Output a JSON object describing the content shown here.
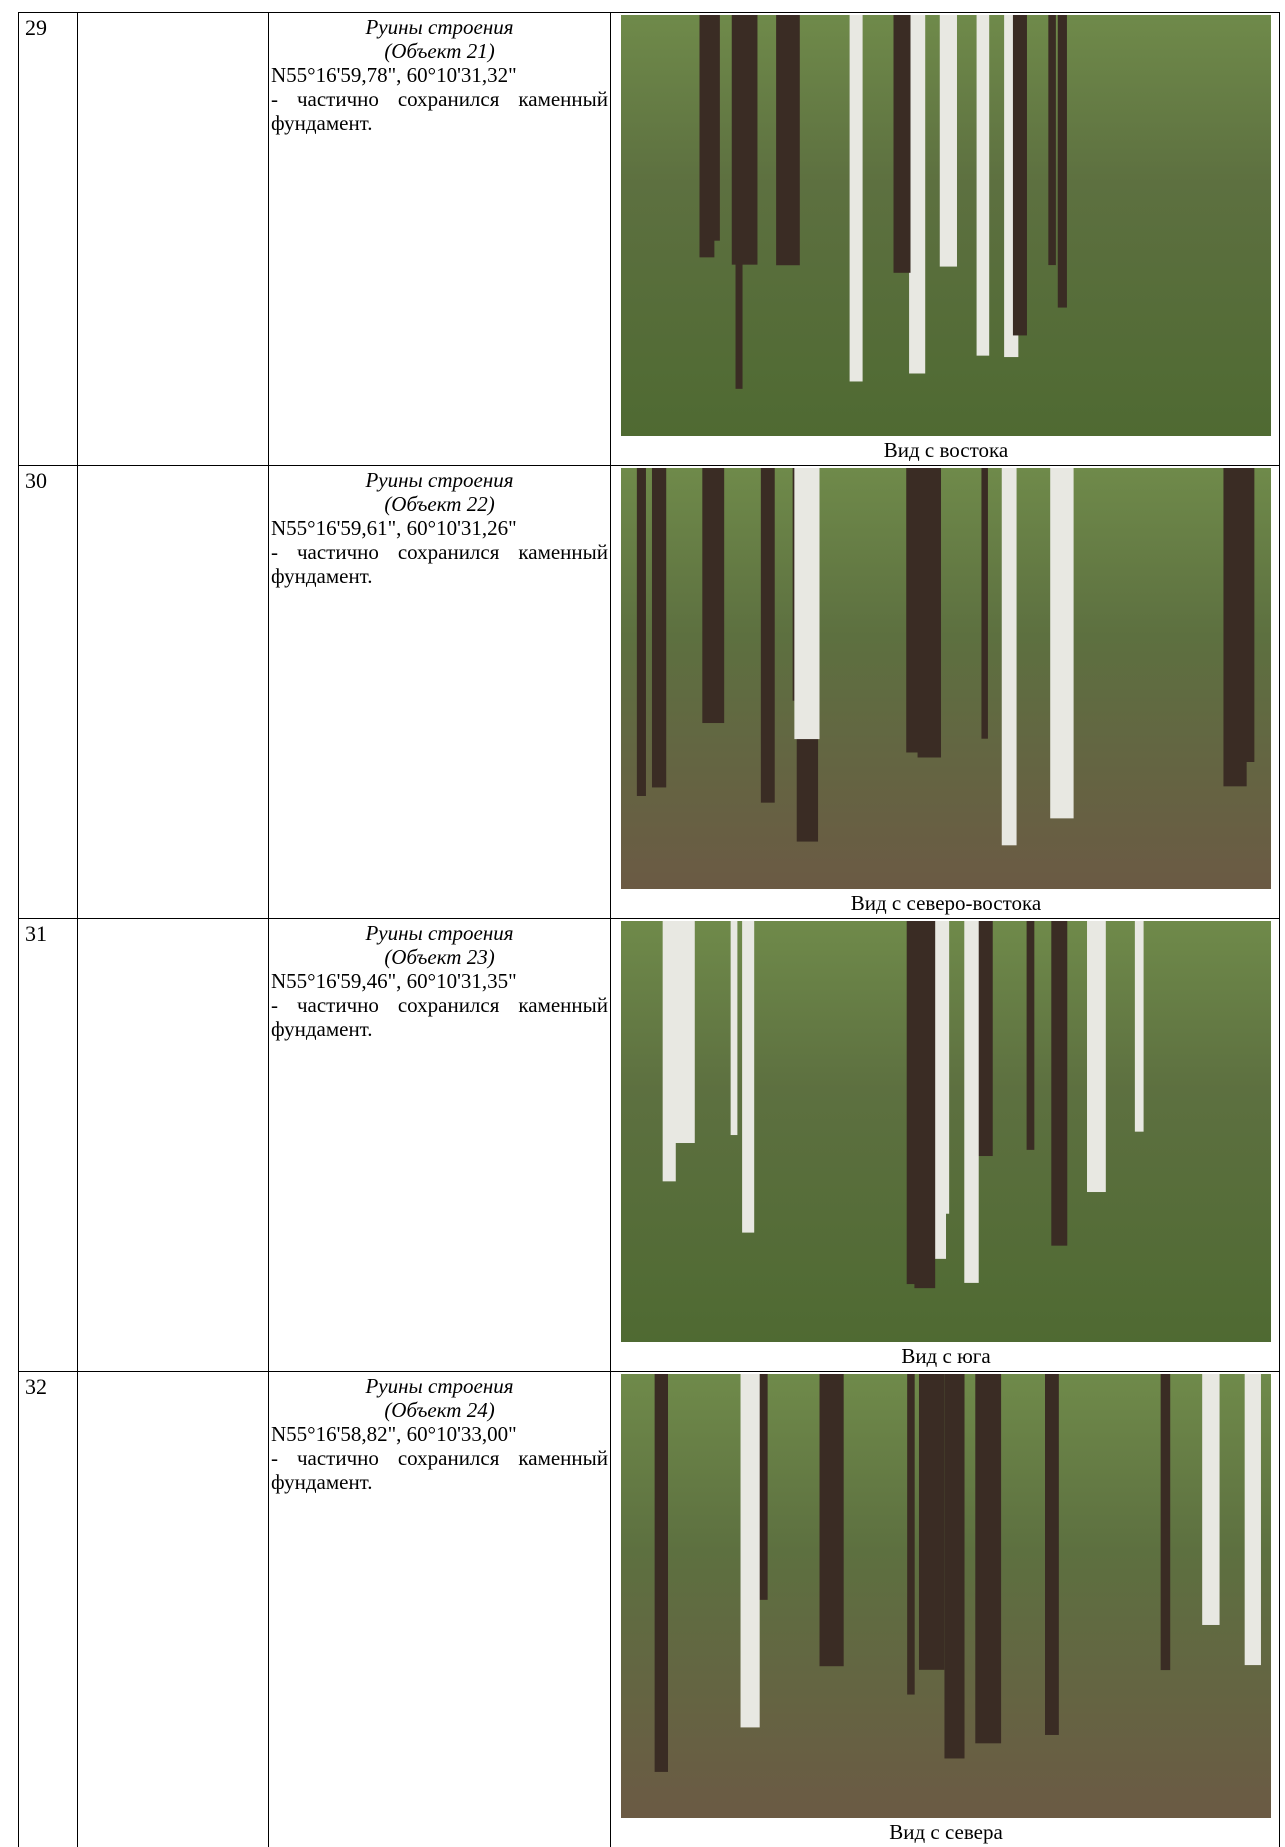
{
  "table": {
    "rows": [
      {
        "number": "29",
        "title": "Руины строения",
        "object": "(Объект 21)",
        "coords": "N55°16'59,78\", 60°10'31,32\"",
        "description": "- частично сохранился каменный фундамент.",
        "caption": "Вид с востока"
      },
      {
        "number": "30",
        "title": "Руины строения",
        "object": "(Объект 22)",
        "coords": "N55°16'59,61\", 60°10'31,26\"",
        "description": "- частично сохранился каменный фундамент.",
        "caption": "Вид с северо-востока"
      },
      {
        "number": "31",
        "title": "Руины строения",
        "object": "(Объект 23)",
        "coords": "N55°16'59,46\", 60°10'31,35\"",
        "description": "- частично сохранился каменный фундамент.",
        "caption": "Вид с юга"
      },
      {
        "number": "32",
        "title": "Руины строения",
        "object": "(Объект 24)",
        "coords": "N55°16'58,82\", 60°10'33,00\"",
        "description": "- частично сохранился каменный фундамент.",
        "caption": "Вид с севера"
      }
    ]
  }
}
